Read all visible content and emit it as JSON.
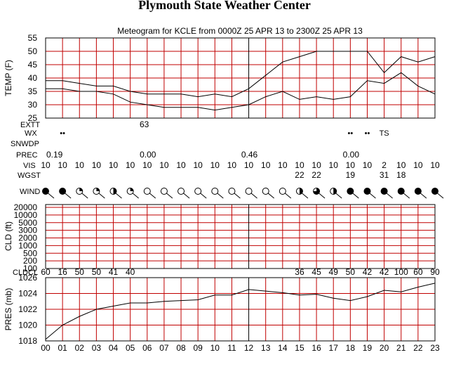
{
  "site_title": "Plymouth State Weather Center",
  "chart_data": {
    "type": "line",
    "title": "Meteogram for KCLE from 0000Z 25 APR 13 to 2300Z 25 APR 13",
    "hours": [
      "00",
      "01",
      "02",
      "03",
      "04",
      "05",
      "06",
      "07",
      "08",
      "09",
      "10",
      "11",
      "12",
      "13",
      "14",
      "15",
      "16",
      "17",
      "18",
      "19",
      "20",
      "21",
      "22",
      "23"
    ],
    "temperature": {
      "ylabel": "TEMP (F)",
      "ylim": [
        25,
        55
      ],
      "yticks": [
        25,
        30,
        35,
        40,
        45,
        50,
        55
      ],
      "series": [
        {
          "values": [
            39,
            39,
            38,
            37,
            37,
            35,
            34,
            34,
            34,
            33,
            34,
            33,
            36,
            41,
            46,
            48,
            50,
            50,
            50,
            50,
            42,
            48,
            46,
            48
          ]
        },
        {
          "values": [
            36,
            36,
            35,
            35,
            34,
            31,
            30,
            29,
            29,
            29,
            28,
            29,
            30,
            33,
            35,
            32,
            33,
            32,
            33,
            39,
            38,
            42,
            37,
            34
          ]
        }
      ]
    },
    "rows": {
      "ext_label": "EXTT",
      "ext_values": [
        {
          "hour": 5,
          "text": "63"
        }
      ],
      "wx_label": "WX",
      "wx_values": [
        {
          "hour": 1,
          "text": "••"
        },
        {
          "hour": 18,
          "text": "••"
        },
        {
          "hour": 19,
          "text": "••"
        },
        {
          "hour": 20,
          "text": "TS"
        }
      ],
      "snwdp_label": "SNWDP",
      "prec_label": "PREC",
      "prec_values": [
        {
          "hour": 0,
          "text": "0.19"
        },
        {
          "hour": 6,
          "text": "0.00"
        },
        {
          "hour": 12,
          "text": "0.46"
        },
        {
          "hour": 18,
          "text": "0.00"
        }
      ],
      "vis_label": "VIS",
      "vis_values": [
        "10",
        "10",
        "10",
        "10",
        "10",
        "10",
        "10",
        "10",
        "10",
        "10",
        "10",
        "10",
        "10",
        "10",
        "10",
        "10",
        "10",
        "10",
        "10",
        "10",
        "2",
        "10",
        "10",
        "10"
      ],
      "wgst_label": "WGST",
      "wgst_values": [
        {
          "hour": 15,
          "text": "22"
        },
        {
          "hour": 16,
          "text": "22"
        },
        {
          "hour": 18,
          "text": "19"
        },
        {
          "hour": 20,
          "text": "31"
        },
        {
          "hour": 21,
          "text": "18"
        }
      ],
      "wind_label": "WIND",
      "wind_cover": [
        "full",
        "full",
        "quarter",
        "quarter",
        "half",
        "quarter",
        "clear",
        "clear",
        "clear",
        "clear",
        "clear",
        "clear",
        "clear",
        "clear",
        "clear",
        "half",
        "three-quarter",
        "half",
        "full",
        "full",
        "full",
        "full",
        "full",
        "full"
      ]
    },
    "clouds": {
      "ylabel": "CLD (ft)",
      "yticks": [
        "20000",
        "10000",
        "5000",
        "3000",
        "2000",
        "1000",
        "500",
        "200",
        "100"
      ],
      "clouds_label": "CLDCL",
      "cldcl_values": [
        {
          "hour": 0,
          "text": "60"
        },
        {
          "hour": 1,
          "text": "16"
        },
        {
          "hour": 2,
          "text": "50"
        },
        {
          "hour": 3,
          "text": "50"
        },
        {
          "hour": 4,
          "text": "41"
        },
        {
          "hour": 5,
          "text": "40"
        },
        {
          "hour": 15,
          "text": "36"
        },
        {
          "hour": 16,
          "text": "45"
        },
        {
          "hour": 17,
          "text": "49"
        },
        {
          "hour": 18,
          "text": "50"
        },
        {
          "hour": 19,
          "text": "42"
        },
        {
          "hour": 20,
          "text": "42"
        },
        {
          "hour": 21,
          "text": "100"
        },
        {
          "hour": 22,
          "text": "60"
        },
        {
          "hour": 23,
          "text": "90"
        }
      ]
    },
    "pressure": {
      "ylabel": "PRES (mb)",
      "ylim": [
        1018,
        1026
      ],
      "yticks": [
        1018,
        1020,
        1022,
        1024,
        1026
      ],
      "values": [
        1018.2,
        1020.0,
        1021.1,
        1022.0,
        1022.4,
        1022.8,
        1022.8,
        1023.0,
        1023.1,
        1023.2,
        1023.8,
        1023.8,
        1024.5,
        1024.3,
        1024.1,
        1023.8,
        1023.9,
        1023.4,
        1023.1,
        1023.6,
        1024.4,
        1024.2,
        1024.8,
        1025.3
      ]
    }
  }
}
